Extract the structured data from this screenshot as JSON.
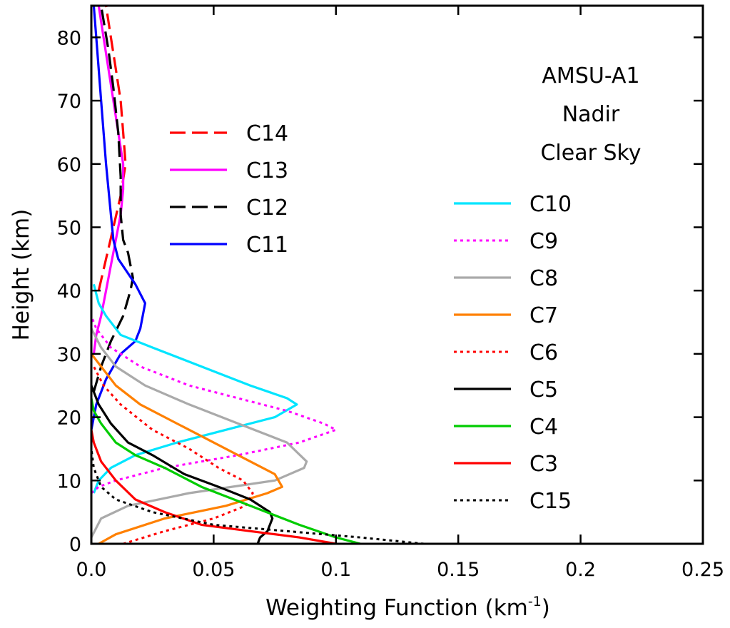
{
  "chart_data": {
    "type": "line",
    "title": "",
    "xlabel": "Weighting Function (km",
    "xlabel_sup": "-1",
    "xlabel_suffix": ")",
    "ylabel": "Height (km)",
    "xlim": [
      0,
      0.25
    ],
    "ylim": [
      0,
      85
    ],
    "xticks": [
      0,
      0.05,
      0.1,
      0.15,
      0.2,
      0.25
    ],
    "xtick_labels": [
      "0.0",
      "0.05",
      "0.1",
      "0.15",
      "0.2",
      "0.25"
    ],
    "yticks": [
      0,
      10,
      20,
      30,
      40,
      50,
      60,
      70,
      80
    ],
    "ytick_labels": [
      "0",
      "10",
      "20",
      "30",
      "40",
      "50",
      "60",
      "70",
      "80"
    ],
    "grid": false,
    "annotations": [
      "AMSU-A1",
      "Nadir",
      "Clear Sky"
    ],
    "legend_groups": [
      {
        "placement": "upper-left",
        "entries": [
          "C14",
          "C13",
          "C12",
          "C11"
        ]
      },
      {
        "placement": "right",
        "entries": [
          "C10",
          "C9",
          "C8",
          "C7",
          "C6",
          "C5",
          "C4",
          "C3",
          "C15"
        ]
      }
    ],
    "series": [
      {
        "name": "C14",
        "color": "#ff0000",
        "style": "dashed",
        "points": [
          [
            0.003,
            40
          ],
          [
            0.006,
            45
          ],
          [
            0.009,
            50
          ],
          [
            0.012,
            55
          ],
          [
            0.014,
            60
          ],
          [
            0.013,
            65
          ],
          [
            0.012,
            70
          ],
          [
            0.01,
            75
          ],
          [
            0.008,
            80
          ],
          [
            0.006,
            85
          ]
        ]
      },
      {
        "name": "C13",
        "color": "#ff00ff",
        "style": "solid",
        "points": [
          [
            0.001,
            30
          ],
          [
            0.002,
            33
          ],
          [
            0.004,
            36
          ],
          [
            0.006,
            40
          ],
          [
            0.008,
            44
          ],
          [
            0.01,
            48
          ],
          [
            0.012,
            52
          ],
          [
            0.013,
            56
          ],
          [
            0.013,
            60
          ],
          [
            0.011,
            65
          ],
          [
            0.009,
            70
          ],
          [
            0.007,
            75
          ],
          [
            0.005,
            80
          ],
          [
            0.003,
            85
          ]
        ]
      },
      {
        "name": "C12",
        "color": "#000000",
        "style": "dashed",
        "points": [
          [
            0.001,
            24
          ],
          [
            0.004,
            28
          ],
          [
            0.008,
            32
          ],
          [
            0.013,
            36
          ],
          [
            0.016,
            40
          ],
          [
            0.017,
            42
          ],
          [
            0.015,
            46
          ],
          [
            0.013,
            48
          ],
          [
            0.012,
            52
          ],
          [
            0.012,
            58
          ],
          [
            0.011,
            65
          ],
          [
            0.009,
            72
          ],
          [
            0.007,
            78
          ],
          [
            0.004,
            85
          ]
        ]
      },
      {
        "name": "C11",
        "color": "#0000ff",
        "style": "solid",
        "points": [
          [
            0.0,
            18
          ],
          [
            0.002,
            22
          ],
          [
            0.006,
            26
          ],
          [
            0.012,
            30
          ],
          [
            0.018,
            32
          ],
          [
            0.02,
            34
          ],
          [
            0.022,
            38
          ],
          [
            0.018,
            41
          ],
          [
            0.011,
            45
          ],
          [
            0.009,
            48
          ],
          [
            0.008,
            52
          ],
          [
            0.006,
            60
          ],
          [
            0.004,
            70
          ],
          [
            0.002,
            80
          ],
          [
            0.001,
            85
          ]
        ]
      },
      {
        "name": "C10",
        "color": "#00e5ff",
        "style": "solid",
        "points": [
          [
            0.001,
            8
          ],
          [
            0.003,
            10
          ],
          [
            0.008,
            12
          ],
          [
            0.018,
            14
          ],
          [
            0.035,
            16
          ],
          [
            0.055,
            18
          ],
          [
            0.075,
            20
          ],
          [
            0.084,
            22
          ],
          [
            0.08,
            23
          ],
          [
            0.065,
            25
          ],
          [
            0.045,
            28
          ],
          [
            0.025,
            31
          ],
          [
            0.012,
            33
          ],
          [
            0.006,
            36
          ],
          [
            0.003,
            38
          ],
          [
            0.001,
            41
          ]
        ]
      },
      {
        "name": "C9",
        "color": "#ff00ff",
        "style": "dotted",
        "points": [
          [
            0.0,
            8
          ],
          [
            0.003,
            9
          ],
          [
            0.01,
            10
          ],
          [
            0.03,
            12
          ],
          [
            0.06,
            14
          ],
          [
            0.085,
            16
          ],
          [
            0.1,
            18
          ],
          [
            0.095,
            19
          ],
          [
            0.08,
            21
          ],
          [
            0.06,
            23
          ],
          [
            0.04,
            25
          ],
          [
            0.02,
            28
          ],
          [
            0.008,
            31
          ],
          [
            0.002,
            34
          ],
          [
            0.0,
            36
          ]
        ]
      },
      {
        "name": "C8",
        "color": "#aaaaaa",
        "style": "solid",
        "points": [
          [
            0.0,
            1
          ],
          [
            0.004,
            4
          ],
          [
            0.015,
            6
          ],
          [
            0.04,
            8
          ],
          [
            0.075,
            10
          ],
          [
            0.087,
            12
          ],
          [
            0.088,
            13
          ],
          [
            0.08,
            16
          ],
          [
            0.06,
            19
          ],
          [
            0.04,
            22
          ],
          [
            0.022,
            25
          ],
          [
            0.01,
            28
          ],
          [
            0.004,
            31
          ],
          [
            0.0,
            34
          ]
        ]
      },
      {
        "name": "C7",
        "color": "#ff8000",
        "style": "solid",
        "points": [
          [
            0.003,
            0
          ],
          [
            0.01,
            1.5
          ],
          [
            0.03,
            4
          ],
          [
            0.055,
            6
          ],
          [
            0.072,
            8
          ],
          [
            0.078,
            9
          ],
          [
            0.075,
            11
          ],
          [
            0.065,
            13
          ],
          [
            0.05,
            16
          ],
          [
            0.035,
            19
          ],
          [
            0.02,
            22
          ],
          [
            0.01,
            25
          ],
          [
            0.004,
            28
          ],
          [
            0.0,
            30
          ]
        ]
      },
      {
        "name": "C6",
        "color": "#ff0000",
        "style": "dotted",
        "points": [
          [
            0.013,
            0
          ],
          [
            0.03,
            2
          ],
          [
            0.05,
            4
          ],
          [
            0.063,
            6
          ],
          [
            0.066,
            8
          ],
          [
            0.062,
            10
          ],
          [
            0.052,
            12
          ],
          [
            0.04,
            15
          ],
          [
            0.025,
            18
          ],
          [
            0.012,
            22
          ],
          [
            0.005,
            25
          ],
          [
            0.001,
            28
          ]
        ]
      },
      {
        "name": "C5",
        "color": "#000000",
        "style": "solid",
        "points": [
          [
            0.068,
            0
          ],
          [
            0.069,
            1
          ],
          [
            0.072,
            2
          ],
          [
            0.074,
            4
          ],
          [
            0.073,
            5
          ],
          [
            0.065,
            7
          ],
          [
            0.052,
            9
          ],
          [
            0.038,
            11
          ],
          [
            0.025,
            14
          ],
          [
            0.015,
            16
          ],
          [
            0.008,
            19
          ],
          [
            0.003,
            22
          ],
          [
            0.0,
            25
          ]
        ]
      },
      {
        "name": "C4",
        "color": "#00cc00",
        "style": "solid",
        "points": [
          [
            0.11,
            0
          ],
          [
            0.1,
            1
          ],
          [
            0.085,
            3
          ],
          [
            0.065,
            6
          ],
          [
            0.045,
            9
          ],
          [
            0.03,
            12
          ],
          [
            0.018,
            14
          ],
          [
            0.01,
            16
          ],
          [
            0.004,
            19
          ],
          [
            0.001,
            21
          ],
          [
            0.0,
            23
          ]
        ]
      },
      {
        "name": "C3",
        "color": "#ff0000",
        "style": "solid",
        "points": [
          [
            0.1,
            0
          ],
          [
            0.085,
            1
          ],
          [
            0.065,
            2
          ],
          [
            0.045,
            3
          ],
          [
            0.03,
            5
          ],
          [
            0.018,
            7
          ],
          [
            0.01,
            10
          ],
          [
            0.004,
            13
          ],
          [
            0.001,
            16
          ],
          [
            0.0,
            18
          ]
        ]
      },
      {
        "name": "C15",
        "color": "#000000",
        "style": "dotted",
        "points": [
          [
            0.136,
            0
          ],
          [
            0.11,
            1
          ],
          [
            0.08,
            2
          ],
          [
            0.05,
            3
          ],
          [
            0.025,
            5
          ],
          [
            0.01,
            7
          ],
          [
            0.004,
            9
          ],
          [
            0.001,
            12
          ],
          [
            0.0,
            15
          ]
        ]
      }
    ]
  }
}
